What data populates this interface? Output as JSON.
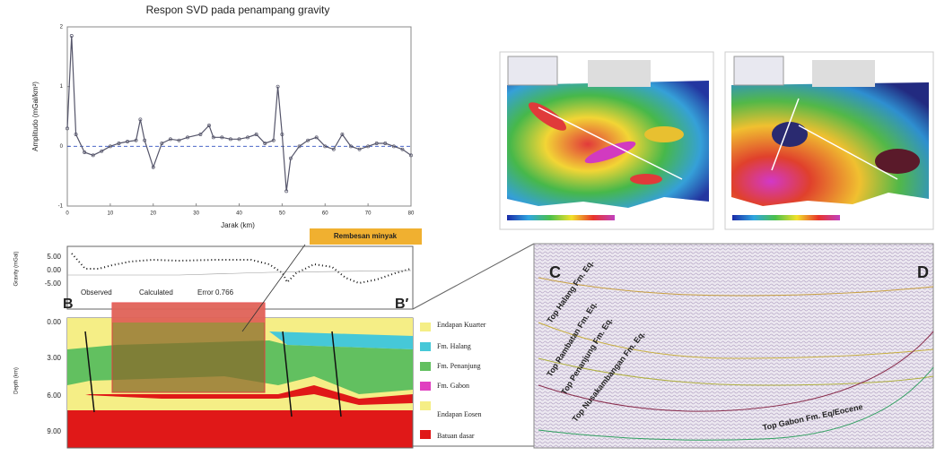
{
  "chart_data": {
    "type": "line",
    "title": "Respon SVD pada penampang gravity",
    "x_label": "Jarak (km)",
    "y_label": "Amplitudo (mGal/km²)",
    "x": [
      0,
      1,
      2,
      4,
      6,
      8,
      10,
      12,
      14,
      16,
      17,
      18,
      20,
      22,
      24,
      26,
      28,
      31,
      33,
      34,
      36,
      38,
      40,
      42,
      44,
      46,
      48,
      49,
      50,
      51,
      52,
      54,
      56,
      58,
      60,
      62,
      64,
      66,
      68,
      70,
      72,
      74,
      76,
      78,
      80
    ],
    "values": [
      0.3,
      1.85,
      0.2,
      -0.1,
      -0.15,
      -0.08,
      0.0,
      0.05,
      0.08,
      0.1,
      0.45,
      0.1,
      -0.35,
      0.05,
      0.12,
      0.1,
      0.15,
      0.2,
      0.35,
      0.15,
      0.15,
      0.12,
      0.12,
      0.15,
      0.2,
      0.05,
      0.1,
      1.0,
      0.2,
      -0.75,
      -0.2,
      0.0,
      0.1,
      0.15,
      0.0,
      -0.05,
      0.2,
      0.0,
      -0.05,
      0.0,
      0.05,
      0.05,
      0.0,
      -0.05,
      -0.15
    ],
    "color": "#55556a",
    "xlim": [
      0,
      80
    ],
    "xticks": [
      0,
      10,
      20,
      30,
      40,
      50,
      60,
      70,
      80
    ],
    "ylim": [
      -1,
      2
    ],
    "yticks": [
      -1,
      0,
      1,
      2
    ]
  },
  "gravity_model": {
    "gravity_label": "Gravity (mGal)",
    "depth_label": "Depth (km)",
    "gravity_ticks": [
      "5.00",
      "0.00",
      "-5.00"
    ],
    "depth_ticks": [
      "0.00",
      "3.00",
      "6.00",
      "9.00"
    ],
    "legend": [
      "Observed",
      "Calculated",
      "Error 0.766"
    ],
    "start": "B",
    "end": "B′",
    "annotation": "Rembesan minyak",
    "layers": [
      "Endapan Kuarter",
      "Fm. Halang",
      "Fm. Penanjung",
      "Fm. Gabon",
      "Endapan Eosen",
      "Batuan dasar"
    ]
  },
  "seismic": {
    "start": "C",
    "end": "D",
    "horizons": [
      "Top Halang Fm. Eq.",
      "Top Rambatan Fm. Eq.",
      "Top Penanjung Fm. Eq.",
      "Top Nusakambangan Fm. Eq.",
      "Top Gabon Fm. Eq/Eocene"
    ]
  }
}
